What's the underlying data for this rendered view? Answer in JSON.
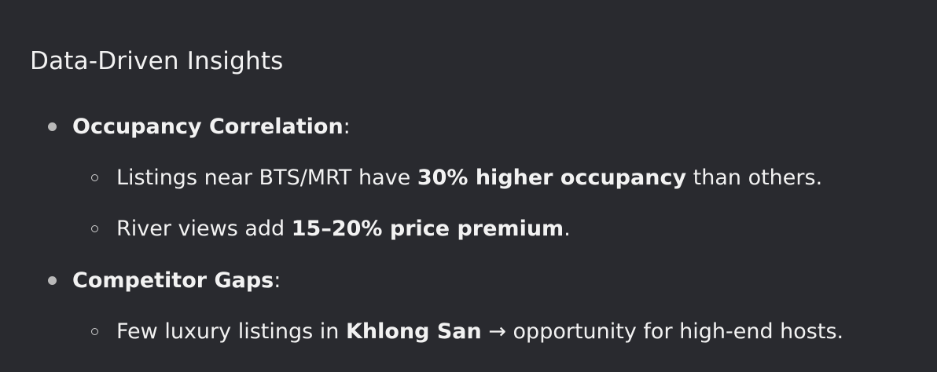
{
  "document": {
    "heading": "Data-Driven Insights",
    "sections": [
      {
        "title": "Occupancy Correlation",
        "title_suffix": ":",
        "items": [
          {
            "pre": "Listings near BTS/MRT have ",
            "bold": "30% higher occupancy",
            "post": " than others."
          },
          {
            "pre": "River views add ",
            "bold": "15–20% price premium",
            "post": "."
          }
        ]
      },
      {
        "title": "Competitor Gaps",
        "title_suffix": ":",
        "items": [
          {
            "pre": "Few luxury listings in ",
            "bold": "Khlong San",
            "post": " → opportunity for high-end hosts."
          }
        ]
      }
    ]
  },
  "colors": {
    "background": "#292a2f",
    "text": "#f2f2f2",
    "bullet": "#b9b9b9"
  }
}
